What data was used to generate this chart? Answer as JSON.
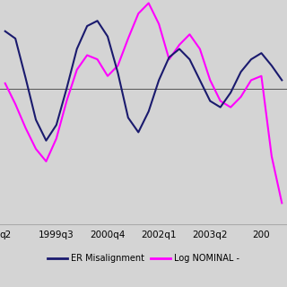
{
  "background_color": "#d4d4d4",
  "plot_bg_color": "#d4d4d4",
  "fig_bg_color": "#d4d4d4",
  "legend_area_color": "#e8e8e8",
  "x_tick_labels": [
    "q2",
    "1999q3",
    "2000q4",
    "2002q1",
    "2003q2",
    "200"
  ],
  "x_tick_positions": [
    0,
    5,
    10,
    15,
    20,
    25
  ],
  "line1_color": "#1a1a6e",
  "line2_color": "#ff00ff",
  "line1_label": "ER Misalignment",
  "line2_label": "Log NOMINAL -",
  "ylim": [
    -1.3,
    0.85
  ],
  "xlim": [
    -0.5,
    27.5
  ],
  "line1_y": [
    0.55,
    0.48,
    0.1,
    -0.3,
    -0.5,
    -0.35,
    0.0,
    0.38,
    0.6,
    0.65,
    0.5,
    0.15,
    -0.28,
    -0.42,
    -0.22,
    0.08,
    0.3,
    0.38,
    0.28,
    0.08,
    -0.12,
    -0.18,
    -0.04,
    0.16,
    0.28,
    0.34,
    0.22,
    0.08
  ],
  "line2_y": [
    0.05,
    -0.15,
    -0.38,
    -0.58,
    -0.7,
    -0.48,
    -0.12,
    0.18,
    0.32,
    0.28,
    0.12,
    0.22,
    0.48,
    0.72,
    0.82,
    0.62,
    0.28,
    0.42,
    0.52,
    0.38,
    0.08,
    -0.12,
    -0.18,
    -0.08,
    0.08,
    0.12,
    -0.65,
    -1.1
  ]
}
